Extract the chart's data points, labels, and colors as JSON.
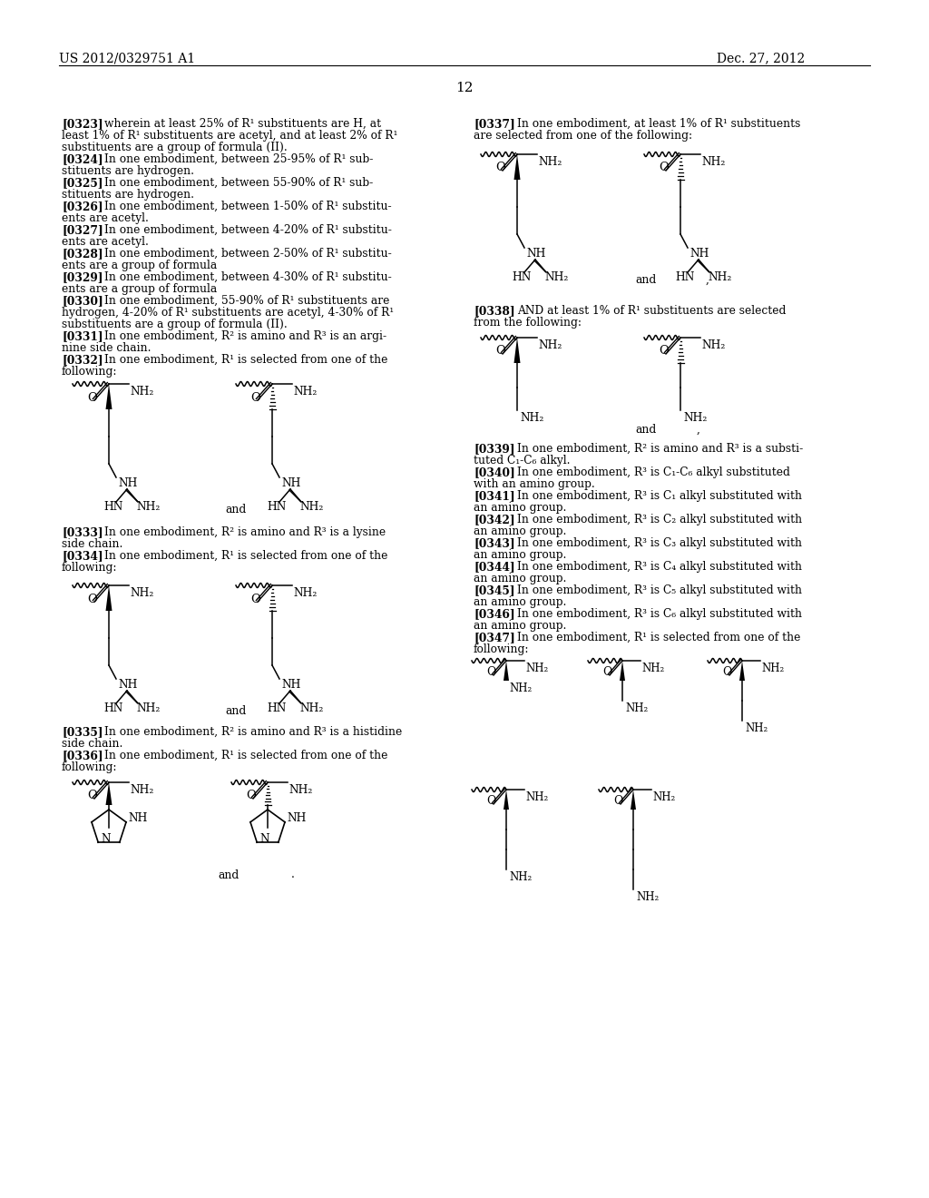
{
  "bg": "#ffffff",
  "header_left": "US 2012/0329751 A1",
  "header_right": "Dec. 27, 2012",
  "page_num": "12"
}
